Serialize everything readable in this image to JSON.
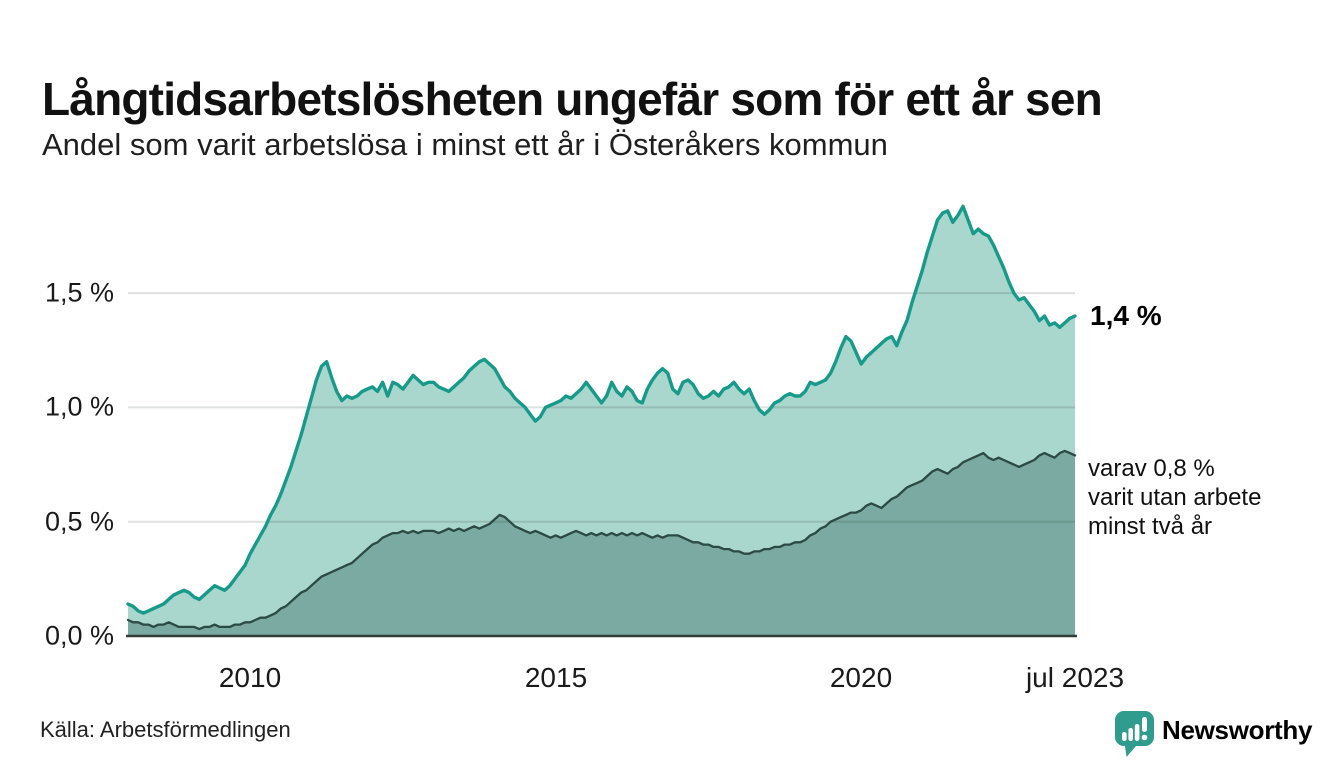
{
  "chart_data": {
    "type": "area",
    "title": "Långtidsarbetslösheten ungefär som för ett år sen",
    "subtitle": "Andel som varit arbetslösa i minst ett år i Österåkers kommun",
    "source": "Källa: Arbetsförmedlingen",
    "x_start": 2008.0,
    "x_end": 2023.5,
    "points_per_month": 1,
    "x_tick_positions": [
      2010,
      2015,
      2020,
      2023.5
    ],
    "x_tick_labels": [
      "2010",
      "2015",
      "2020",
      "jul 2023"
    ],
    "y_ticks": [
      0,
      0.5,
      1.0,
      1.5
    ],
    "y_tick_labels": [
      "0,0 %",
      "0,5 %",
      "1,0 %",
      "1,5 %"
    ],
    "ylim": [
      0,
      1.91
    ],
    "grid": "horizontal",
    "legend": "none",
    "annotations": {
      "end_label_primary": "1,4 %",
      "end_label_secondary_lines": [
        "varav 0,8 %",
        "varit utan arbete",
        "minst två år"
      ]
    },
    "colors": {
      "line_primary": "#189a8a",
      "fill_primary": "#a9d6cd",
      "line_secondary": "#2c4a44",
      "fill_secondary": "#7baaa2",
      "gridline": "#e0e0e0",
      "baseline": "#323d3a"
    },
    "series": [
      {
        "name": "arbetslösa minst ett år",
        "end_value": 1.4,
        "color": "#189a8a",
        "fill": "#a9d6cd",
        "values": [
          0.14,
          0.13,
          0.11,
          0.1,
          0.11,
          0.12,
          0.13,
          0.14,
          0.16,
          0.18,
          0.19,
          0.2,
          0.19,
          0.17,
          0.16,
          0.18,
          0.2,
          0.22,
          0.21,
          0.2,
          0.22,
          0.25,
          0.28,
          0.31,
          0.36,
          0.4,
          0.44,
          0.48,
          0.53,
          0.57,
          0.62,
          0.68,
          0.74,
          0.81,
          0.88,
          0.96,
          1.04,
          1.12,
          1.18,
          1.2,
          1.13,
          1.07,
          1.03,
          1.05,
          1.04,
          1.05,
          1.07,
          1.08,
          1.09,
          1.07,
          1.11,
          1.05,
          1.11,
          1.1,
          1.08,
          1.11,
          1.14,
          1.12,
          1.1,
          1.11,
          1.11,
          1.09,
          1.08,
          1.07,
          1.09,
          1.11,
          1.13,
          1.16,
          1.18,
          1.2,
          1.21,
          1.19,
          1.17,
          1.13,
          1.09,
          1.07,
          1.04,
          1.02,
          1.0,
          0.97,
          0.94,
          0.96,
          1.0,
          1.01,
          1.02,
          1.03,
          1.05,
          1.04,
          1.06,
          1.08,
          1.11,
          1.08,
          1.05,
          1.02,
          1.05,
          1.11,
          1.07,
          1.05,
          1.09,
          1.07,
          1.03,
          1.02,
          1.08,
          1.12,
          1.15,
          1.17,
          1.15,
          1.08,
          1.06,
          1.11,
          1.12,
          1.1,
          1.06,
          1.04,
          1.05,
          1.07,
          1.05,
          1.08,
          1.09,
          1.11,
          1.08,
          1.06,
          1.08,
          1.03,
          0.99,
          0.97,
          0.99,
          1.02,
          1.03,
          1.05,
          1.06,
          1.05,
          1.05,
          1.07,
          1.11,
          1.1,
          1.11,
          1.12,
          1.15,
          1.2,
          1.26,
          1.31,
          1.29,
          1.24,
          1.19,
          1.22,
          1.24,
          1.26,
          1.28,
          1.3,
          1.31,
          1.27,
          1.33,
          1.38,
          1.46,
          1.53,
          1.6,
          1.68,
          1.75,
          1.82,
          1.85,
          1.86,
          1.81,
          1.84,
          1.88,
          1.82,
          1.76,
          1.78,
          1.76,
          1.75,
          1.71,
          1.66,
          1.61,
          1.55,
          1.5,
          1.47,
          1.48,
          1.45,
          1.42,
          1.38,
          1.4,
          1.36,
          1.37,
          1.35,
          1.37,
          1.39,
          1.4
        ]
      },
      {
        "name": "varit utan arbete minst två år",
        "end_value": 0.8,
        "color": "#2c4a44",
        "fill": "#7baaa2",
        "values": [
          0.07,
          0.06,
          0.06,
          0.05,
          0.05,
          0.04,
          0.05,
          0.05,
          0.06,
          0.05,
          0.04,
          0.04,
          0.04,
          0.04,
          0.03,
          0.04,
          0.04,
          0.05,
          0.04,
          0.04,
          0.04,
          0.05,
          0.05,
          0.06,
          0.06,
          0.07,
          0.08,
          0.08,
          0.09,
          0.1,
          0.12,
          0.13,
          0.15,
          0.17,
          0.19,
          0.2,
          0.22,
          0.24,
          0.26,
          0.27,
          0.28,
          0.29,
          0.3,
          0.31,
          0.32,
          0.34,
          0.36,
          0.38,
          0.4,
          0.41,
          0.43,
          0.44,
          0.45,
          0.45,
          0.46,
          0.45,
          0.46,
          0.45,
          0.46,
          0.46,
          0.46,
          0.45,
          0.46,
          0.47,
          0.46,
          0.47,
          0.46,
          0.47,
          0.48,
          0.47,
          0.48,
          0.49,
          0.51,
          0.53,
          0.52,
          0.5,
          0.48,
          0.47,
          0.46,
          0.45,
          0.46,
          0.45,
          0.44,
          0.43,
          0.44,
          0.43,
          0.44,
          0.45,
          0.46,
          0.45,
          0.44,
          0.45,
          0.44,
          0.45,
          0.44,
          0.45,
          0.44,
          0.45,
          0.44,
          0.45,
          0.44,
          0.45,
          0.44,
          0.43,
          0.44,
          0.43,
          0.44,
          0.44,
          0.44,
          0.43,
          0.42,
          0.41,
          0.41,
          0.4,
          0.4,
          0.39,
          0.39,
          0.38,
          0.38,
          0.37,
          0.37,
          0.36,
          0.36,
          0.37,
          0.37,
          0.38,
          0.38,
          0.39,
          0.39,
          0.4,
          0.4,
          0.41,
          0.41,
          0.42,
          0.44,
          0.45,
          0.47,
          0.48,
          0.5,
          0.51,
          0.52,
          0.53,
          0.54,
          0.54,
          0.55,
          0.57,
          0.58,
          0.57,
          0.56,
          0.58,
          0.6,
          0.61,
          0.63,
          0.65,
          0.66,
          0.67,
          0.68,
          0.7,
          0.72,
          0.73,
          0.72,
          0.71,
          0.73,
          0.74,
          0.76,
          0.77,
          0.78,
          0.79,
          0.8,
          0.78,
          0.77,
          0.78,
          0.77,
          0.76,
          0.75,
          0.74,
          0.75,
          0.76,
          0.77,
          0.79,
          0.8,
          0.79,
          0.78,
          0.8,
          0.81,
          0.8,
          0.79
        ]
      }
    ]
  },
  "branding": {
    "name": "Newsworthy",
    "color": "#2b9a8c"
  }
}
